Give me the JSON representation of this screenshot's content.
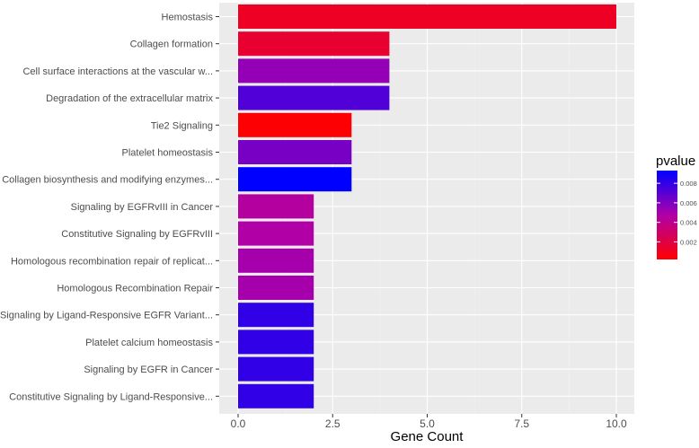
{
  "chart_data": {
    "type": "bar",
    "orientation": "horizontal",
    "xlabel": "Gene Count",
    "ylabel": "",
    "xlim": [
      0,
      10
    ],
    "xticks": [
      0,
      2.5,
      5,
      7.5,
      10
    ],
    "xtick_labels": [
      "0.0",
      "2.5",
      "5.0",
      "7.5",
      "10.0"
    ],
    "grid": true,
    "color_variable": "pvalue",
    "categories": [
      "Hemostasis",
      "Collagen formation",
      "Cell surface interactions at the vascular w...",
      "Degradation of the extracellular matrix",
      "Tie2 Signaling",
      "Platelet homeostasis",
      "Collagen biosynthesis and modifying enzymes...",
      "Signaling by EGFRvIII in Cancer",
      "Constitutive Signaling by EGFRvIII",
      "Homologous recombination repair of replicat...",
      "Homologous Recombination Repair",
      "Signaling by Ligand-Responsive EGFR Variant...",
      "Platelet calcium homeostasis",
      "Signaling by EGFR in Cancer",
      "Constitutive Signaling by Ligand-Responsive..."
    ],
    "values": [
      10,
      4,
      4,
      4,
      3,
      3,
      3,
      2,
      2,
      2,
      2,
      2,
      2,
      2,
      2
    ],
    "pvalues": [
      0.0012,
      0.0015,
      0.0055,
      0.0072,
      0.0003,
      0.0062,
      0.0093,
      0.0045,
      0.0047,
      0.005,
      0.005,
      0.008,
      0.008,
      0.008,
      0.008
    ],
    "legend": {
      "title": "pvalue",
      "position": "right",
      "min": 0.0002,
      "max": 0.0093,
      "ticks": [
        0.002,
        0.004,
        0.006,
        0.008
      ],
      "tick_labels": [
        "0.002",
        "0.004",
        "0.006",
        "0.008"
      ],
      "low_color": "#ff0000",
      "high_color": "#0000ff"
    },
    "colors": {
      "panel_background": "#ebebeb",
      "grid_major": "#ffffff",
      "grid_minor": "#f4f4f4"
    }
  }
}
